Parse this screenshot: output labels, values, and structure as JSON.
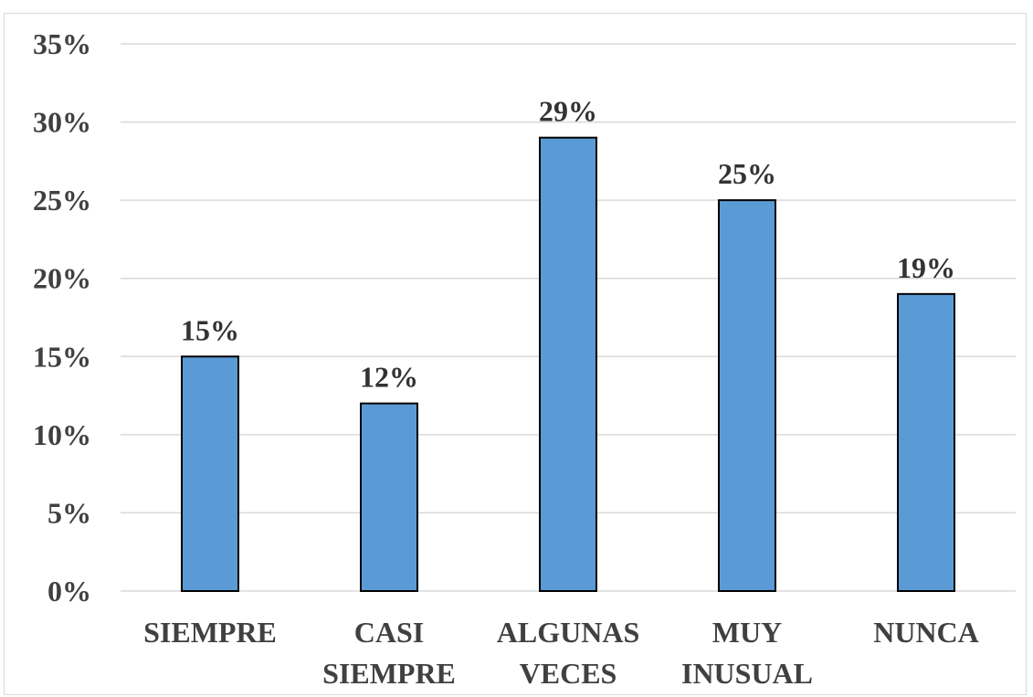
{
  "chart_data": {
    "type": "bar",
    "categories": [
      [
        "SIEMPRE"
      ],
      [
        "CASI",
        "SIEMPRE"
      ],
      [
        "ALGUNAS",
        "VECES"
      ],
      [
        "MUY",
        "INUSUAL"
      ],
      [
        "NUNCA"
      ]
    ],
    "values": [
      15,
      12,
      29,
      25,
      19
    ],
    "data_labels": [
      "15%",
      "12%",
      "29%",
      "25%",
      "19%"
    ],
    "y_ticks": [
      "0%",
      "5%",
      "10%",
      "15%",
      "20%",
      "25%",
      "30%",
      "35%"
    ],
    "ylim": [
      0,
      35
    ],
    "y_unit": "%",
    "grid": true,
    "bar_color": "#5b9bd5",
    "bar_border_color": "#000000",
    "grid_color": "#d9d9d9"
  }
}
